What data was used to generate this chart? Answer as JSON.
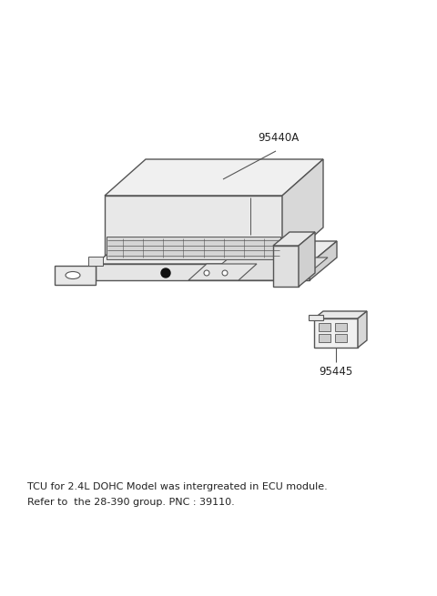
{
  "background_color": "#ffffff",
  "line_color": "#555555",
  "fill_top": "#f0f0f0",
  "fill_front": "#e8e8e8",
  "fill_right": "#d8d8d8",
  "fill_base": "#e5e5e5",
  "text_color": "#222222",
  "label_95440A": "95440A",
  "label_95445": "95445",
  "note_line1": "TCU for 2.4L DOHC Model was intergreated in ECU module.",
  "note_line2": "Refer to  the 28-390 group. PNC : 39110.",
  "fig_width": 4.8,
  "fig_height": 6.55,
  "dpi": 100
}
